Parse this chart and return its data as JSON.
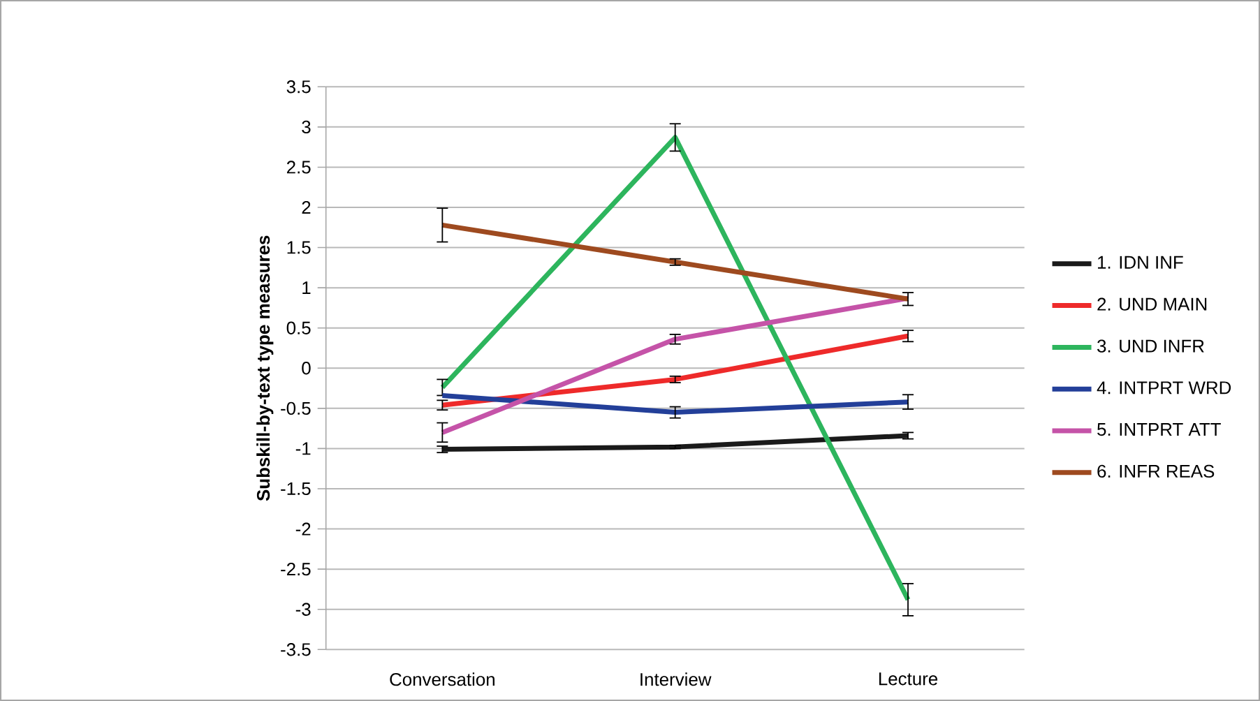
{
  "chart_data": {
    "type": "line",
    "ylabel": "Subskill-by-text type measures",
    "categories": [
      "Conversation",
      "Interview",
      "Lecture"
    ],
    "series": [
      {
        "name": "1. IDN INF",
        "color": "#1a1a1a",
        "values": [
          -1.01,
          -0.98,
          -0.84
        ],
        "errors": [
          0.04,
          0.02,
          0.04
        ]
      },
      {
        "name": "2. UND MAIN",
        "color": "#ee2a2a",
        "values": [
          -0.46,
          -0.14,
          0.4
        ],
        "errors": [
          0.06,
          0.04,
          0.07
        ]
      },
      {
        "name": "3. UND INFR",
        "color": "#2db55d",
        "values": [
          -0.24,
          2.87,
          -2.88
        ],
        "errors": [
          0.1,
          0.17,
          0.2
        ]
      },
      {
        "name": "4. INTPRT WRD",
        "color": "#233f99",
        "values": [
          -0.34,
          -0.55,
          -0.42
        ],
        "errors": [
          null,
          0.07,
          0.09
        ]
      },
      {
        "name": "5. INTPRT ATT",
        "color": "#c553a8",
        "values": [
          -0.8,
          0.36,
          0.87
        ],
        "errors": [
          0.12,
          0.06,
          null
        ]
      },
      {
        "name": "6. INFR REAS",
        "color": "#9e4a1f",
        "values": [
          1.78,
          1.32,
          0.86
        ],
        "errors": [
          0.21,
          0.04,
          0.08
        ]
      }
    ],
    "ylim": [
      -3.5,
      3.5
    ],
    "yticks": [
      -3.5,
      -3,
      -2.5,
      -2,
      -1.5,
      -1,
      -0.5,
      0,
      0.5,
      1,
      1.5,
      2,
      2.5,
      3,
      3.5
    ],
    "grid": "y",
    "legend": "right",
    "marker": "none",
    "line_style": "solid"
  }
}
